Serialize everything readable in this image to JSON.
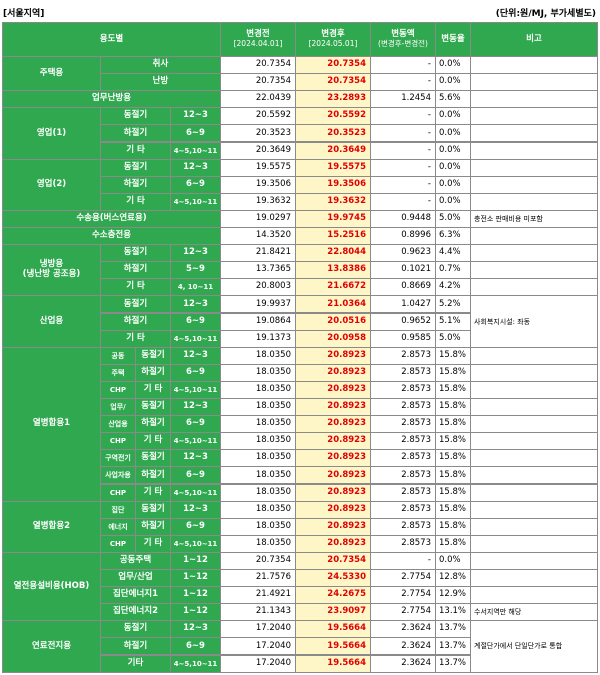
{
  "header": {
    "region": "[서울지역]",
    "unit": "(단위:원/MJ, 부가세별도)",
    "columns": [
      "용도별",
      "변경전",
      "변경후",
      "변동액",
      "변동율",
      "비고"
    ],
    "before_date": "[2024.04.01]",
    "after_date": "[2024.05.01]",
    "diff_note": "(변경후-변경전)"
  },
  "groups": [
    {
      "label": [
        "주택용"
      ],
      "rows": [
        {
          "cells": [
            "취사"
          ],
          "before": "20.7354",
          "after": "20.7354",
          "diff": "-",
          "rate": "0.0%"
        },
        {
          "cells": [
            "난방"
          ],
          "before": "20.7354",
          "after": "20.7354",
          "diff": "-",
          "rate": "0.0%"
        }
      ]
    },
    {
      "label": [
        "업무난방용"
      ],
      "rows": [
        {
          "cells": [],
          "before": "22.0439",
          "after": "23.2893",
          "diff": "1.2454",
          "rate": "5.6%"
        }
      ]
    },
    {
      "label": [
        "영업(1)"
      ],
      "rows": [
        {
          "cells": [
            "동절기",
            "12~3"
          ],
          "before": "20.5592",
          "after": "20.5592",
          "diff": "-",
          "rate": "0.0%"
        },
        {
          "cells": [
            "하절기",
            "6~9"
          ],
          "before": "20.3523",
          "after": "20.3523",
          "diff": "-",
          "rate": "0.0%"
        },
        {
          "cells": [
            "기 타",
            "4~5,10~11"
          ],
          "before": "20.3649",
          "after": "20.3649",
          "diff": "-",
          "rate": "0.0%"
        }
      ]
    },
    {
      "label": [
        "영업(2)"
      ],
      "rows": [
        {
          "cells": [
            "동절기",
            "12~3"
          ],
          "before": "19.5575",
          "after": "19.5575",
          "diff": "-",
          "rate": "0.0%"
        },
        {
          "cells": [
            "하절기",
            "6~9"
          ],
          "before": "19.3506",
          "after": "19.3506",
          "diff": "-",
          "rate": "0.0%"
        },
        {
          "cells": [
            "기 타",
            "4~5,10~11"
          ],
          "before": "19.3632",
          "after": "19.3632",
          "diff": "-",
          "rate": "0.0%"
        }
      ]
    },
    {
      "label": [
        "수송용(버스연료용)"
      ],
      "note": "충전소 판매비용 미포함",
      "rows": [
        {
          "cells": [],
          "before": "19.0297",
          "after": "19.9745",
          "diff": "0.9448",
          "rate": "5.0%"
        }
      ]
    },
    {
      "label": [
        "수소충전용"
      ],
      "rows": [
        {
          "cells": [],
          "before": "14.3520",
          "after": "15.2516",
          "diff": "0.8996",
          "rate": "6.3%"
        }
      ]
    },
    {
      "label": [
        "냉방용",
        "(냉난방 공조용)"
      ],
      "rows": [
        {
          "cells": [
            "동절기",
            "12~3"
          ],
          "before": "21.8421",
          "after": "22.8044",
          "diff": "0.9623",
          "rate": "4.4%"
        },
        {
          "cells": [
            "하절기",
            "5~9"
          ],
          "before": "13.7365",
          "after": "13.8386",
          "diff": "0.1021",
          "rate": "0.7%"
        },
        {
          "cells": [
            "기 타",
            "4, 10~11"
          ],
          "before": "20.8003",
          "after": "21.6672",
          "diff": "0.8669",
          "rate": "4.2%"
        }
      ]
    },
    {
      "label": [
        "산업용"
      ],
      "note": "사회복지시설: 좌동",
      "rows": [
        {
          "cells": [
            "동절기",
            "12~3"
          ],
          "before": "19.9937",
          "after": "21.0364",
          "diff": "1.0427",
          "rate": "5.2%"
        },
        {
          "cells": [
            "하절기",
            "6~9"
          ],
          "before": "19.0864",
          "after": "20.0516",
          "diff": "0.9652",
          "rate": "5.1%"
        },
        {
          "cells": [
            "기 타",
            "4~5,10~11"
          ],
          "before": "19.1373",
          "after": "20.0958",
          "diff": "0.9585",
          "rate": "5.0%"
        }
      ]
    },
    {
      "label": [
        "열병합용1"
      ],
      "rows": [
        {
          "cells": [
            "공동",
            "동절기",
            "12~3"
          ],
          "before": "18.0350",
          "after": "20.8923",
          "diff": "2.8573",
          "rate": "15.8%"
        },
        {
          "cells": [
            "주택",
            "하절기",
            "6~9"
          ],
          "before": "18.0350",
          "after": "20.8923",
          "diff": "2.8573",
          "rate": "15.8%"
        },
        {
          "cells": [
            "CHP",
            "기 타",
            "4~5,10~11"
          ],
          "before": "18.0350",
          "after": "20.8923",
          "diff": "2.8573",
          "rate": "15.8%"
        },
        {
          "cells": [
            "업무/",
            "동절기",
            "12~3"
          ],
          "before": "18.0350",
          "after": "20.8923",
          "diff": "2.8573",
          "rate": "15.8%"
        },
        {
          "cells": [
            "산업용",
            "하절기",
            "6~9"
          ],
          "before": "18.0350",
          "after": "20.8923",
          "diff": "2.8573",
          "rate": "15.8%"
        },
        {
          "cells": [
            "CHP",
            "기 타",
            "4~5,10~11"
          ],
          "before": "18.0350",
          "after": "20.8923",
          "diff": "2.8573",
          "rate": "15.8%"
        },
        {
          "cells": [
            "구역전기",
            "동절기",
            "12~3"
          ],
          "before": "18.0350",
          "after": "20.8923",
          "diff": "2.8573",
          "rate": "15.8%"
        },
        {
          "cells": [
            "사업자용",
            "하절기",
            "6~9"
          ],
          "before": "18.0350",
          "after": "20.8923",
          "diff": "2.8573",
          "rate": "15.8%"
        },
        {
          "cells": [
            "CHP",
            "기 타",
            "4~5,10~11"
          ],
          "before": "18.0350",
          "after": "20.8923",
          "diff": "2.8573",
          "rate": "15.8%"
        }
      ]
    },
    {
      "label": [
        "열병합용2"
      ],
      "rows": [
        {
          "cells": [
            "집단",
            "동절기",
            "12~3"
          ],
          "before": "18.0350",
          "after": "20.8923",
          "diff": "2.8573",
          "rate": "15.8%"
        },
        {
          "cells": [
            "에너지",
            "하절기",
            "6~9"
          ],
          "before": "18.0350",
          "after": "20.8923",
          "diff": "2.8573",
          "rate": "15.8%"
        },
        {
          "cells": [
            "CHP",
            "기 타",
            "4~5,10~11"
          ],
          "before": "18.0350",
          "after": "20.8923",
          "diff": "2.8573",
          "rate": "15.8%"
        }
      ]
    },
    {
      "label": [
        "열전용설비용(HOB)"
      ],
      "rows": [
        {
          "cells": [
            "공동주택",
            "1~12"
          ],
          "before": "20.7354",
          "after": "20.7354",
          "diff": "-",
          "rate": "0.0%"
        },
        {
          "cells": [
            "업무/산업",
            "1~12"
          ],
          "before": "21.7576",
          "after": "24.5330",
          "diff": "2.7754",
          "rate": "12.8%"
        },
        {
          "cells": [
            "집단에너지1",
            "1~12"
          ],
          "before": "21.4921",
          "after": "24.2675",
          "diff": "2.7754",
          "rate": "12.9%"
        },
        {
          "cells": [
            "집단에너지2",
            "1~12"
          ],
          "before": "21.1343",
          "after": "23.9097",
          "diff": "2.7754",
          "rate": "13.1%",
          "note": "수서지역만 해당"
        }
      ]
    },
    {
      "label": [
        "연료전지용"
      ],
      "note": "계절단가에서 단일단가로 통합",
      "rows": [
        {
          "cells": [
            "동절기",
            "12~3"
          ],
          "before": "17.2040",
          "after": "19.5664",
          "diff": "2.3624",
          "rate": "13.7%"
        },
        {
          "cells": [
            "하절기",
            "6~9"
          ],
          "before": "17.2040",
          "after": "19.5664",
          "diff": "2.3624",
          "rate": "13.7%"
        },
        {
          "cells": [
            "기타",
            "4~5,10~11"
          ],
          "before": "17.2040",
          "after": "19.5664",
          "diff": "2.3624",
          "rate": "13.7%"
        }
      ]
    }
  ]
}
